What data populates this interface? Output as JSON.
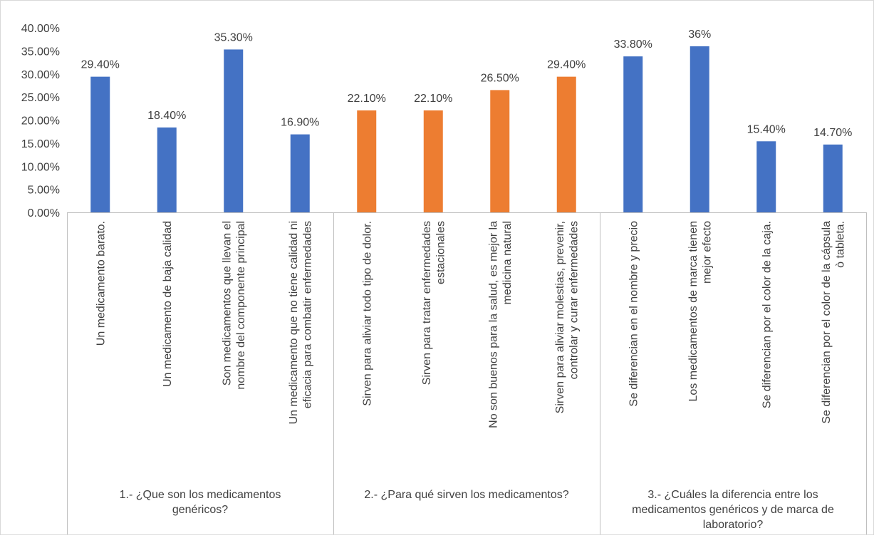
{
  "chart_data": {
    "type": "bar",
    "ylim": [
      0,
      0.4
    ],
    "y_ticks": [
      "0.00%",
      "5.00%",
      "10.00%",
      "15.00%",
      "20.00%",
      "25.00%",
      "30.00%",
      "35.00%",
      "40.00%"
    ],
    "grid": false,
    "groups": [
      {
        "label": "1.- ¿Que son los medicamentos genéricos?",
        "label_lines": [
          "1.- ¿Que son los medicamentos",
          "genéricos?"
        ],
        "color": "#4472c4",
        "categories": [
          {
            "label": "Un medicamento barato.",
            "label_lines": [
              "Un medicamento barato."
            ],
            "value": 0.294,
            "value_label": "29.40%"
          },
          {
            "label": "Un medicamento de baja calidad",
            "label_lines": [
              "Un medicamento de baja calidad"
            ],
            "value": 0.184,
            "value_label": "18.40%"
          },
          {
            "label": "Son medicamentos que llevan el nombre del componente principal",
            "label_lines": [
              "Son medicamentos que llevan el",
              "nombre del componente principal"
            ],
            "value": 0.353,
            "value_label": "35.30%"
          },
          {
            "label": "Un medicamento que no tiene calidad ni eficacia para combatir enfermedades",
            "label_lines": [
              "Un medicamento que no tiene calidad ni",
              "eficacia para combatir enfermedades"
            ],
            "value": 0.169,
            "value_label": "16.90%"
          }
        ]
      },
      {
        "label": "2.- ¿Para qué sirven los medicamentos?",
        "label_lines": [
          "2.- ¿Para qué sirven los medicamentos?"
        ],
        "color": "#ed7d31",
        "categories": [
          {
            "label": "Sirven para aliviar todo tipo de dolor.",
            "label_lines": [
              "Sirven para aliviar todo tipo de dolor."
            ],
            "value": 0.221,
            "value_label": "22.10%"
          },
          {
            "label": "Sirven para tratar enfermedades estacionales",
            "label_lines": [
              "Sirven para tratar enfermedades",
              "estacionales"
            ],
            "value": 0.221,
            "value_label": "22.10%"
          },
          {
            "label": "No son buenos para la salud, es mejor la medicina natural",
            "label_lines": [
              "No son buenos para la salud, es mejor la",
              "medicina natural"
            ],
            "value": 0.265,
            "value_label": "26.50%"
          },
          {
            "label": "Sirven para aliviar molestias, prevenir, controlar y curar enfermedades",
            "label_lines": [
              "Sirven para aliviar molestias, prevenir,",
              "controlar y curar enfermedades"
            ],
            "value": 0.294,
            "value_label": "29.40%"
          }
        ]
      },
      {
        "label": "3.- ¿Cuáles la diferencia entre los medicamentos genéricos y de marca de laboratorio?",
        "label_lines": [
          "3.- ¿Cuáles la diferencia entre los",
          "medicamentos genéricos y de marca de",
          "laboratorio?"
        ],
        "color": "#4472c4",
        "categories": [
          {
            "label": "Se diferencian en el nombre y precio",
            "label_lines": [
              "Se diferencian en el nombre y precio"
            ],
            "value": 0.338,
            "value_label": "33.80%"
          },
          {
            "label": "Los medicamentos de marca tienen mejor efecto",
            "label_lines": [
              "Los medicamentos de marca tienen",
              "mejor efecto"
            ],
            "value": 0.36,
            "value_label": "36%"
          },
          {
            "label": "Se diferencian por el color de la caja.",
            "label_lines": [
              "Se diferencian por el color de la caja."
            ],
            "value": 0.154,
            "value_label": "15.40%"
          },
          {
            "label": "Se diferencian por el color de la cápsula ò tableta.",
            "label_lines": [
              "Se diferencian por el color de la cápsula",
              "ò tableta."
            ],
            "value": 0.147,
            "value_label": "14.70%"
          }
        ]
      }
    ]
  }
}
